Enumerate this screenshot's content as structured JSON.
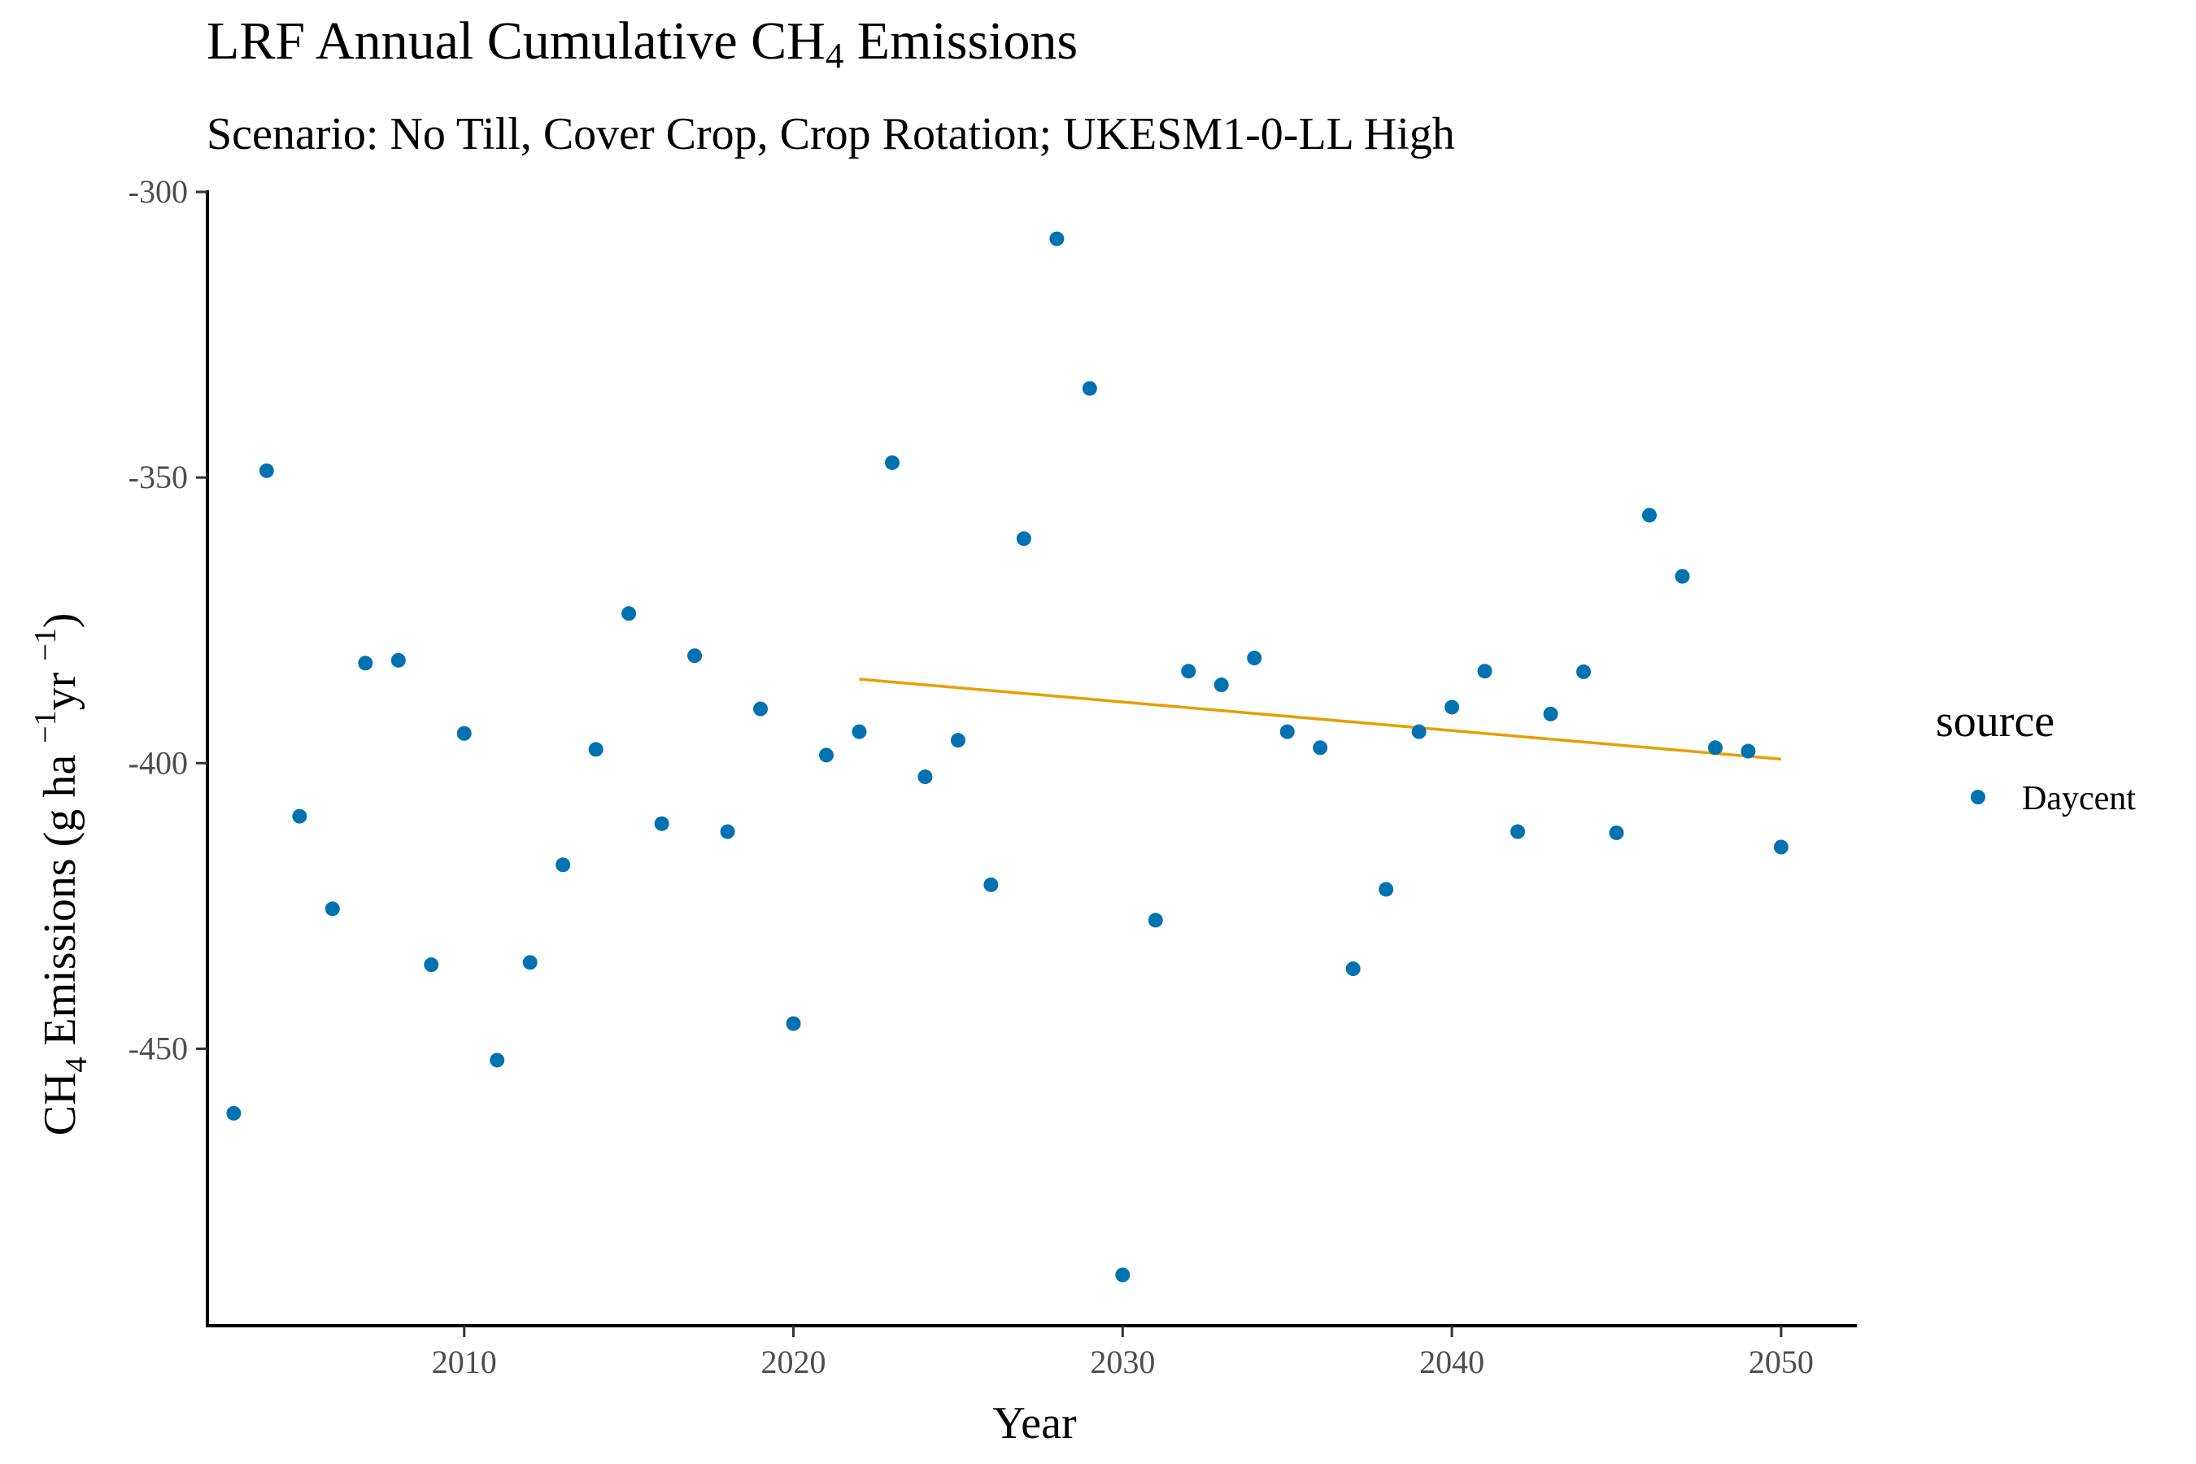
{
  "chart_data": {
    "type": "scatter",
    "title": {
      "pre": "LRF Annual Cumulative CH",
      "sub": "4",
      "post": " Emissions"
    },
    "subtitle": "Scenario: No Till, Cover Crop, Crop Rotation; UKESM1-0-LL High",
    "xlabel": "Year",
    "ylabel": {
      "a": "CH",
      "a_sub": "4",
      "b": " Emissions (g ha ",
      "b_sup": "−1",
      "c": "yr ",
      "c_sup": "−1",
      "d": ")"
    },
    "xlim": [
      2002.2,
      2052.3
    ],
    "ylim": [
      -498.5,
      -300
    ],
    "x_ticks": [
      2010,
      2020,
      2030,
      2040,
      2050
    ],
    "y_ticks": [
      -300,
      -350,
      -400,
      -450
    ],
    "grid": false,
    "legend": {
      "title": "source",
      "position": "right",
      "entries": [
        {
          "label": "Daycent",
          "color": "#0072B2"
        }
      ]
    },
    "series": [
      {
        "name": "Daycent",
        "color": "#0072B2",
        "points": [
          [
            2003,
            -461.3
          ],
          [
            2004,
            -348.8
          ],
          [
            2005,
            -409.3
          ],
          [
            2006,
            -425.5
          ],
          [
            2007,
            -382.5
          ],
          [
            2008,
            -382.0
          ],
          [
            2009,
            -435.3
          ],
          [
            2010,
            -394.8
          ],
          [
            2011,
            -452.0
          ],
          [
            2012,
            -434.9
          ],
          [
            2013,
            -417.8
          ],
          [
            2014,
            -397.6
          ],
          [
            2015,
            -373.8
          ],
          [
            2016,
            -410.6
          ],
          [
            2017,
            -381.2
          ],
          [
            2018,
            -412.0
          ],
          [
            2019,
            -390.5
          ],
          [
            2020,
            -445.6
          ],
          [
            2021,
            -398.6
          ],
          [
            2022,
            -394.5
          ],
          [
            2023,
            -347.4
          ],
          [
            2024,
            -402.4
          ],
          [
            2025,
            -396.0
          ],
          [
            2026,
            -421.3
          ],
          [
            2027,
            -360.7
          ],
          [
            2028,
            -308.2
          ],
          [
            2029,
            -334.4
          ],
          [
            2030,
            -489.6
          ],
          [
            2031,
            -427.5
          ],
          [
            2032,
            -383.9
          ],
          [
            2033,
            -386.3
          ],
          [
            2034,
            -381.6
          ],
          [
            2035,
            -394.5
          ],
          [
            2036,
            -397.3
          ],
          [
            2037,
            -436.0
          ],
          [
            2038,
            -422.1
          ],
          [
            2039,
            -394.5
          ],
          [
            2040,
            -390.2
          ],
          [
            2041,
            -383.9
          ],
          [
            2042,
            -412.0
          ],
          [
            2043,
            -391.4
          ],
          [
            2044,
            -384.0
          ],
          [
            2045,
            -412.2
          ],
          [
            2046,
            -356.6
          ],
          [
            2047,
            -367.3
          ],
          [
            2048,
            -397.3
          ],
          [
            2049,
            -397.9
          ],
          [
            2050,
            -414.7
          ]
        ]
      }
    ],
    "trend_line": {
      "color": "#E69F00",
      "x": [
        2022,
        2050
      ],
      "y": [
        -385.3,
        -399.3
      ]
    }
  }
}
